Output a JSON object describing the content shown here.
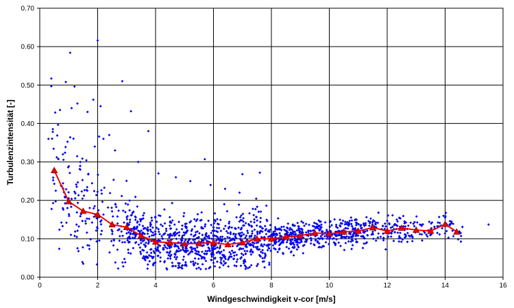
{
  "chart_data": {
    "type": "scatter",
    "title": "",
    "xlabel": "Windgeschwindigkeit v-cor [m/s]",
    "ylabel": "Turbulenzintensität [-]",
    "xlim": [
      0,
      16
    ],
    "ylim": [
      0,
      0.7
    ],
    "x_ticks": [
      "0",
      "2",
      "4",
      "6",
      "8",
      "10",
      "12",
      "14",
      "16"
    ],
    "y_ticks": [
      "0.00",
      "0.10",
      "0.20",
      "0.30",
      "0.40",
      "0.50",
      "0.60",
      "0.70"
    ],
    "grid": true,
    "legend": "none",
    "colors": {
      "scatter": "#0000ee",
      "line": "#ee0000",
      "marker_fill": "#ee0000",
      "marker_edge": "#8b0000",
      "grid": "#000000"
    },
    "series": [
      {
        "kind": "line-with-triangle-markers",
        "x": [
          0.5,
          1.0,
          1.5,
          2.0,
          2.5,
          3.0,
          3.5,
          4.0,
          4.5,
          5.0,
          5.5,
          6.0,
          6.5,
          7.0,
          7.5,
          8.0,
          8.5,
          9.0,
          9.5,
          10.0,
          10.5,
          11.0,
          11.5,
          12.0,
          12.5,
          13.0,
          13.5,
          14.0,
          14.4
        ],
        "y": [
          0.278,
          0.197,
          0.172,
          0.163,
          0.137,
          0.13,
          0.108,
          0.092,
          0.09,
          0.087,
          0.088,
          0.09,
          0.085,
          0.09,
          0.1,
          0.1,
          0.105,
          0.108,
          0.115,
          0.113,
          0.118,
          0.12,
          0.129,
          0.12,
          0.128,
          0.123,
          0.12,
          0.138,
          0.118
        ]
      },
      {
        "kind": "scatter-points",
        "x": [
          0.4,
          0.4,
          0.45,
          0.9,
          1.05,
          1.2,
          2.0,
          2.1,
          0.7,
          1.3,
          2.85,
          1.1,
          1.65,
          1.85,
          3.15,
          3.75,
          2.05,
          2.4,
          5.7,
          7.6,
          7.0,
          15.5,
          14.0,
          0.3,
          0.8,
          1.4,
          1.9,
          2.2,
          2.6,
          3.4,
          4.1,
          4.7,
          5.2,
          5.9,
          6.4,
          6.9
        ],
        "y": [
          0.517,
          0.497,
          0.378,
          0.508,
          0.584,
          0.496,
          0.616,
          0.445,
          0.435,
          0.452,
          0.51,
          0.44,
          0.43,
          0.462,
          0.432,
          0.38,
          0.366,
          0.37,
          0.307,
          0.272,
          0.268,
          0.137,
          0.155,
          0.36,
          0.32,
          0.28,
          0.34,
          0.36,
          0.33,
          0.3,
          0.27,
          0.26,
          0.25,
          0.24,
          0.23,
          0.22
        ]
      }
    ]
  }
}
